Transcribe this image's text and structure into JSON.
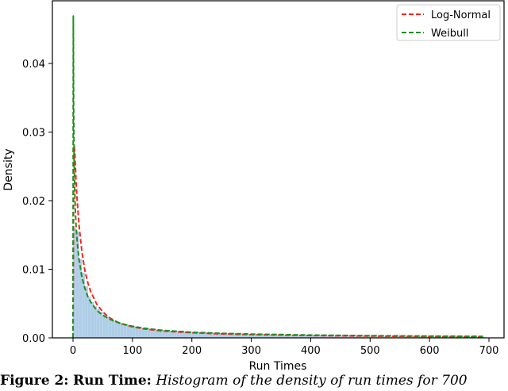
{
  "chart_data": {
    "type": "histogram+line",
    "title": "",
    "xlabel": "Run Times",
    "ylabel": "Density",
    "xlim": [
      -35,
      725
    ],
    "ylim": [
      0,
      0.049
    ],
    "xticks": [
      0,
      100,
      200,
      300,
      400,
      500,
      600,
      700
    ],
    "yticks": [
      0.0,
      0.01,
      0.02,
      0.03,
      0.04
    ],
    "ytick_labels": [
      "0.00",
      "0.01",
      "0.02",
      "0.03",
      "0.04"
    ],
    "grid": false,
    "legend_position": "upper right",
    "histogram": {
      "color": "#aecde6",
      "bin_width": 5,
      "bins_x": [
        0,
        5,
        10,
        15,
        20,
        25,
        30,
        35,
        40,
        45,
        50,
        55,
        60,
        65,
        70,
        75,
        80,
        85,
        90,
        95,
        100,
        110,
        120,
        130,
        140,
        150,
        160,
        170,
        180,
        190,
        200,
        250,
        300,
        350,
        400,
        450,
        500,
        550,
        600,
        650,
        690
      ],
      "density": [
        0.016,
        0.0155,
        0.0115,
        0.0095,
        0.0075,
        0.006,
        0.0052,
        0.0046,
        0.0042,
        0.0038,
        0.0034,
        0.0031,
        0.0028,
        0.0026,
        0.0024,
        0.0023,
        0.0021,
        0.002,
        0.0019,
        0.0018,
        0.0017,
        0.0015,
        0.0014,
        0.0013,
        0.0012,
        0.0011,
        0.00105,
        0.001,
        0.00095,
        0.0009,
        0.00085,
        0.0007,
        0.00055,
        0.00045,
        0.00038,
        0.00032,
        0.00028,
        0.00024,
        0.0002,
        0.00018,
        0.00016
      ]
    },
    "series": [
      {
        "name": "Log-Normal",
        "color": "#ff2020",
        "style": "dashed",
        "x": [
          0,
          1,
          2,
          3,
          4,
          5,
          7,
          10,
          15,
          20,
          25,
          30,
          40,
          50,
          60,
          70,
          80,
          100,
          120,
          150,
          200,
          250,
          300,
          400,
          500,
          600,
          690
        ],
        "y": [
          0,
          0.024,
          0.028,
          0.027,
          0.025,
          0.023,
          0.02,
          0.0165,
          0.0125,
          0.0098,
          0.008,
          0.0067,
          0.0049,
          0.0038,
          0.003,
          0.0025,
          0.0021,
          0.0016,
          0.0013,
          0.001,
          0.00075,
          0.00058,
          0.00047,
          0.00034,
          0.00026,
          0.0002,
          0.00017
        ]
      },
      {
        "name": "Weibull",
        "color": "#1f8f1f",
        "style": "dashed",
        "x": [
          0,
          0.5,
          1,
          2,
          3,
          4,
          5,
          7,
          10,
          15,
          20,
          25,
          30,
          40,
          50,
          60,
          70,
          80,
          100,
          120,
          150,
          200,
          250,
          300,
          400,
          500,
          600,
          690
        ],
        "y": [
          0,
          0.0469,
          0.034,
          0.025,
          0.021,
          0.0185,
          0.0165,
          0.014,
          0.0115,
          0.0088,
          0.0072,
          0.006,
          0.0052,
          0.004,
          0.0033,
          0.0028,
          0.0024,
          0.0021,
          0.0017,
          0.0014,
          0.0011,
          0.00082,
          0.00066,
          0.00055,
          0.00041,
          0.00032,
          0.00026,
          0.00022
        ]
      }
    ]
  },
  "legend": {
    "items": [
      {
        "label": "Log-Normal",
        "color": "#ff2020"
      },
      {
        "label": "Weibull",
        "color": "#1f8f1f"
      }
    ]
  },
  "caption": {
    "label": "Figure 2:",
    "title": "Run Time:",
    "text": "Histogram of the density of run times for 700"
  }
}
